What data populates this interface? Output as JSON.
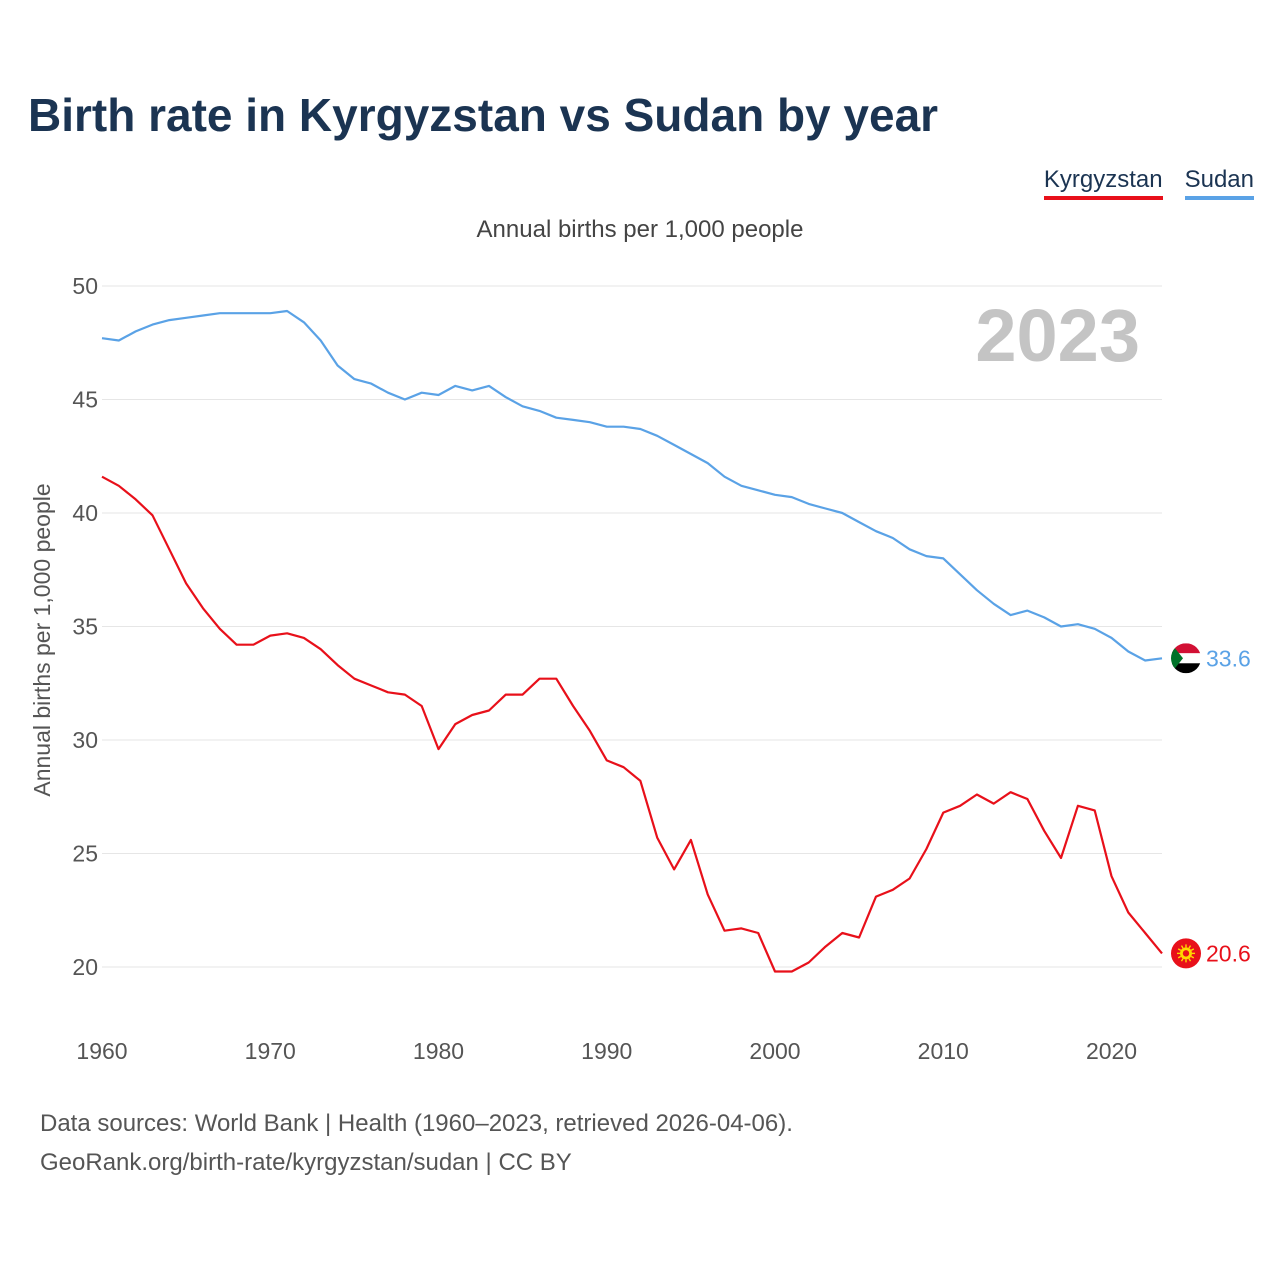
{
  "title": "Birth rate in Kyrgyzstan vs Sudan by year",
  "legend": [
    {
      "label": "Kyrgyzstan",
      "color": "#e8101a"
    },
    {
      "label": "Sudan",
      "color": "#5aa2e6"
    }
  ],
  "subtitle": "Annual births per 1,000 people",
  "year_label": "2023",
  "footer": {
    "line1": "Data sources: World Bank | Health (1960–2023, retrieved 2026-04-06).",
    "line2": "GeoRank.org/birth-rate/kyrgyzstan/sudan | CC BY"
  },
  "chart_data": {
    "type": "line",
    "title": "Birth rate in Kyrgyzstan vs Sudan by year",
    "xlabel": "",
    "ylabel": "Annual births per 1,000 people",
    "xlim": [
      1960,
      2023
    ],
    "ylim": [
      20,
      50
    ],
    "x_ticks": [
      "1960",
      "1970",
      "1980",
      "1990",
      "2000",
      "2010",
      "2020"
    ],
    "y_ticks": [
      "20",
      "25",
      "30",
      "35",
      "40",
      "45",
      "50"
    ],
    "grid": true,
    "x": [
      1960,
      1961,
      1962,
      1963,
      1964,
      1965,
      1966,
      1967,
      1968,
      1969,
      1970,
      1971,
      1972,
      1973,
      1974,
      1975,
      1976,
      1977,
      1978,
      1979,
      1980,
      1981,
      1982,
      1983,
      1984,
      1985,
      1986,
      1987,
      1988,
      1989,
      1990,
      1991,
      1992,
      1993,
      1994,
      1995,
      1996,
      1997,
      1998,
      1999,
      2000,
      2001,
      2002,
      2003,
      2004,
      2005,
      2006,
      2007,
      2008,
      2009,
      2010,
      2011,
      2012,
      2013,
      2014,
      2015,
      2016,
      2017,
      2018,
      2019,
      2020,
      2021,
      2022,
      2023
    ],
    "series": [
      {
        "name": "Kyrgyzstan",
        "color": "#e8101a",
        "end_label": "20.6",
        "values": [
          41.6,
          41.2,
          40.6,
          39.9,
          38.4,
          36.9,
          35.8,
          34.9,
          34.2,
          34.2,
          34.6,
          34.7,
          34.5,
          34.0,
          33.3,
          32.7,
          32.4,
          32.1,
          32.0,
          31.5,
          29.6,
          30.7,
          31.1,
          31.3,
          32.0,
          32.0,
          32.7,
          32.7,
          31.5,
          30.4,
          29.1,
          28.8,
          28.2,
          25.7,
          24.3,
          25.6,
          23.2,
          21.6,
          21.7,
          21.5,
          19.8,
          19.8,
          20.2,
          20.9,
          21.5,
          21.3,
          23.1,
          23.4,
          23.9,
          25.2,
          26.8,
          27.1,
          27.6,
          27.2,
          27.7,
          27.4,
          26.0,
          24.8,
          27.1,
          26.9,
          24.0,
          22.4,
          21.5,
          20.6
        ]
      },
      {
        "name": "Sudan",
        "color": "#5aa2e6",
        "end_label": "33.6",
        "values": [
          47.7,
          47.6,
          48.0,
          48.3,
          48.5,
          48.6,
          48.7,
          48.8,
          48.8,
          48.8,
          48.8,
          48.9,
          48.4,
          47.6,
          46.5,
          45.9,
          45.7,
          45.3,
          45.0,
          45.3,
          45.2,
          45.6,
          45.4,
          45.6,
          45.1,
          44.7,
          44.5,
          44.2,
          44.1,
          44.0,
          43.8,
          43.8,
          43.7,
          43.4,
          43.0,
          42.6,
          42.2,
          41.6,
          41.2,
          41.0,
          40.8,
          40.7,
          40.4,
          40.2,
          40.0,
          39.6,
          39.2,
          38.9,
          38.4,
          38.1,
          38.0,
          37.3,
          36.6,
          36.0,
          35.5,
          35.7,
          35.4,
          35.0,
          35.1,
          34.9,
          34.5,
          33.9,
          33.5,
          33.6
        ]
      }
    ]
  }
}
